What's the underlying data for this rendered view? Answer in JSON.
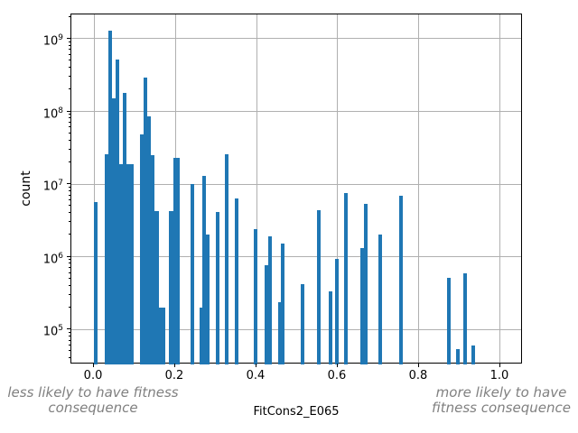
{
  "figure": {
    "background_color": "#ffffff",
    "bar_color": "#1f77b4",
    "grid_color": "#b0b0b0",
    "spine_color": "#000000",
    "annotation_color": "#808080"
  },
  "chart_data": {
    "type": "bar",
    "subtype": "histogram",
    "title": "",
    "xlabel": "FitCons2_E065",
    "ylabel": "count",
    "yscale": "log",
    "grid": true,
    "legend": false,
    "xlim": [
      -0.0556,
      1.0556
    ],
    "ylim": [
      33000,
      2160000000
    ],
    "x_ticks": [
      "0.0",
      "0.2",
      "0.4",
      "0.6",
      "0.8",
      "1.0"
    ],
    "x_tick_values": [
      0.0,
      0.2,
      0.4,
      0.6,
      0.8,
      1.0
    ],
    "y_ticks": [
      {
        "base": "10",
        "exp": "9",
        "value": 1000000000
      },
      {
        "base": "10",
        "exp": "8",
        "value": 100000000
      },
      {
        "base": "10",
        "exp": "7",
        "value": 10000000
      },
      {
        "base": "10",
        "exp": "6",
        "value": 1000000
      },
      {
        "base": "10",
        "exp": "5",
        "value": 100000
      }
    ],
    "annotations": [
      {
        "position": "bottom-left",
        "lines": [
          "less likely to have fitness",
          "consequence"
        ]
      },
      {
        "position": "bottom-right",
        "lines": [
          "more likely to have",
          "fitness consequence"
        ]
      }
    ],
    "bars": [
      {
        "x0": 0.0,
        "x1": 0.009,
        "count": 5700000
      },
      {
        "x0": 0.026,
        "x1": 0.036,
        "count": 26000000
      },
      {
        "x0": 0.036,
        "x1": 0.044,
        "count": 1300000000
      },
      {
        "x0": 0.044,
        "x1": 0.053,
        "count": 150000000
      },
      {
        "x0": 0.053,
        "x1": 0.062,
        "count": 520000000
      },
      {
        "x0": 0.062,
        "x1": 0.071,
        "count": 19000000
      },
      {
        "x0": 0.071,
        "x1": 0.08,
        "count": 180000000
      },
      {
        "x0": 0.08,
        "x1": 0.089,
        "count": 19000000
      },
      {
        "x0": 0.089,
        "x1": 0.098,
        "count": 19000000
      },
      {
        "x0": 0.113,
        "x1": 0.122,
        "count": 48000000
      },
      {
        "x0": 0.122,
        "x1": 0.131,
        "count": 290000000
      },
      {
        "x0": 0.131,
        "x1": 0.14,
        "count": 85000000
      },
      {
        "x0": 0.14,
        "x1": 0.149,
        "count": 25000000
      },
      {
        "x0": 0.149,
        "x1": 0.16,
        "count": 4200000
      },
      {
        "x0": 0.16,
        "x1": 0.175,
        "count": 200000
      },
      {
        "x0": 0.185,
        "x1": 0.195,
        "count": 4300000
      },
      {
        "x0": 0.196,
        "x1": 0.21,
        "count": 23000000
      },
      {
        "x0": 0.238,
        "x1": 0.247,
        "count": 10000000
      },
      {
        "x0": 0.26,
        "x1": 0.267,
        "count": 200000
      },
      {
        "x0": 0.267,
        "x1": 0.276,
        "count": 13000000
      },
      {
        "x0": 0.276,
        "x1": 0.284,
        "count": 2000000
      },
      {
        "x0": 0.3,
        "x1": 0.309,
        "count": 4100000
      },
      {
        "x0": 0.322,
        "x1": 0.331,
        "count": 26000000
      },
      {
        "x0": 0.347,
        "x1": 0.356,
        "count": 6300000
      },
      {
        "x0": 0.393,
        "x1": 0.402,
        "count": 2400000
      },
      {
        "x0": 0.42,
        "x1": 0.429,
        "count": 770000
      },
      {
        "x0": 0.429,
        "x1": 0.438,
        "count": 1900000
      },
      {
        "x0": 0.453,
        "x1": 0.46,
        "count": 240000
      },
      {
        "x0": 0.46,
        "x1": 0.469,
        "count": 1500000
      },
      {
        "x0": 0.509,
        "x1": 0.518,
        "count": 420000
      },
      {
        "x0": 0.549,
        "x1": 0.558,
        "count": 4400000
      },
      {
        "x0": 0.578,
        "x1": 0.587,
        "count": 330000
      },
      {
        "x0": 0.593,
        "x1": 0.602,
        "count": 940000
      },
      {
        "x0": 0.616,
        "x1": 0.625,
        "count": 7500000
      },
      {
        "x0": 0.656,
        "x1": 0.664,
        "count": 1300000
      },
      {
        "x0": 0.664,
        "x1": 0.673,
        "count": 5400000
      },
      {
        "x0": 0.7,
        "x1": 0.709,
        "count": 2000000
      },
      {
        "x0": 0.751,
        "x1": 0.76,
        "count": 7000000
      },
      {
        "x0": 0.869,
        "x1": 0.878,
        "count": 520000
      },
      {
        "x0": 0.891,
        "x1": 0.9,
        "count": 53000
      },
      {
        "x0": 0.909,
        "x1": 0.918,
        "count": 590000
      },
      {
        "x0": 0.929,
        "x1": 0.938,
        "count": 60000
      }
    ]
  }
}
